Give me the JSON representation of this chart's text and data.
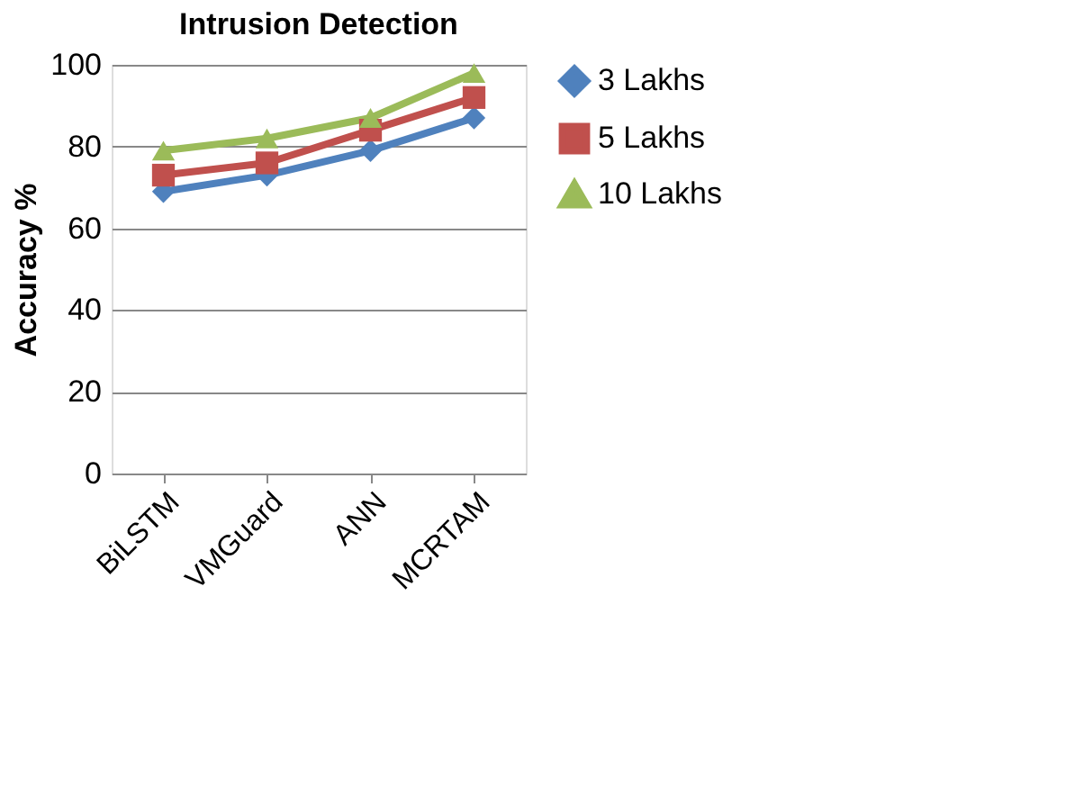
{
  "chart_data": {
    "type": "line",
    "title": "Intrusion Detection",
    "ylabel": "Accuracy %",
    "categories": [
      "BiLSTM",
      "VMGuard",
      "ANN",
      "MCRTAM"
    ],
    "series": [
      {
        "name": "3 Lakhs",
        "color": "#4f81bd",
        "marker": "diamond",
        "values": [
          69,
          73,
          79,
          87
        ]
      },
      {
        "name": "5 Lakhs",
        "color": "#c0504d",
        "marker": "square",
        "values": [
          73,
          76,
          84,
          92
        ]
      },
      {
        "name": "10 Lakhs",
        "color": "#9bbb59",
        "marker": "triangle",
        "values": [
          79,
          82,
          87,
          98
        ]
      }
    ],
    "ylim": [
      0,
      100
    ],
    "yticks": [
      0,
      20,
      40,
      60,
      80,
      100
    ],
    "grid": "y",
    "legend": "right"
  }
}
